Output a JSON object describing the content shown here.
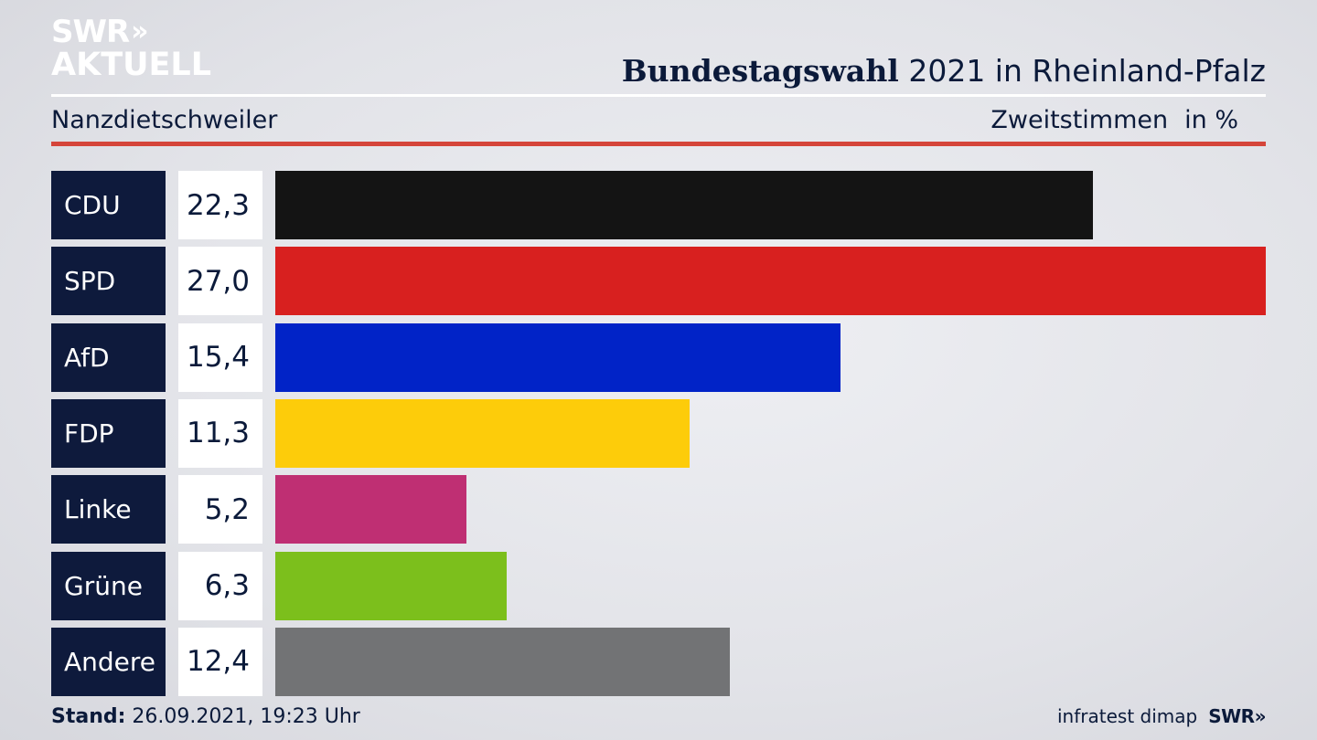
{
  "brand": {
    "logo_line1": "SWR",
    "logo_chevrons": "»",
    "logo_line2": "AKTUELL"
  },
  "header": {
    "title_strong": "Bundestagswahl",
    "title_rest": " 2021 in Rheinland-Pfalz",
    "location": "Nanzdietschweiler",
    "metric": "Zweitstimmen",
    "unit": "in %"
  },
  "chart_data": {
    "type": "bar",
    "orientation": "horizontal",
    "categories": [
      "CDU",
      "SPD",
      "AfD",
      "FDP",
      "Linke",
      "Grüne",
      "Andere"
    ],
    "values": [
      22.3,
      27.0,
      15.4,
      11.3,
      5.2,
      6.3,
      12.4
    ],
    "value_labels": [
      "22,3",
      "27,0",
      "15,4",
      "11,3",
      "5,2",
      "6,3",
      "12,4"
    ],
    "colors": [
      "#141414",
      "#d8201f",
      "#0123c7",
      "#fdcc0a",
      "#bf2f73",
      "#7cbf1c",
      "#727375"
    ],
    "xlim": [
      0,
      27.0
    ],
    "title": "Bundestagswahl 2021 in Rheinland-Pfalz",
    "xlabel": "",
    "ylabel": "",
    "grid": false,
    "legend": "none"
  },
  "footer": {
    "stand_label": "Stand:",
    "stand_value": " 26.09.2021, 19:23 Uhr",
    "source": "infratest dimap",
    "source_brand": "SWR»"
  }
}
